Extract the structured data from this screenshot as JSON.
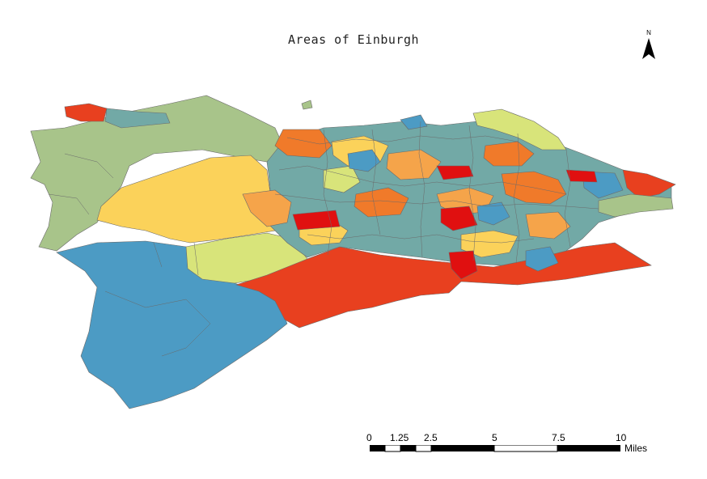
{
  "map": {
    "title": "Areas of Einburgh",
    "north_label": "N",
    "palette": [
      "#4c9bc4",
      "#72a9a6",
      "#a8c48a",
      "#d8e47a",
      "#fbd25a",
      "#f5a44a",
      "#f07a2a",
      "#e8401f",
      "#e01010"
    ],
    "outline_color": "#6a6a6a"
  },
  "scale_bar": {
    "ticks": [
      "0",
      "1.25",
      "2.5",
      "5",
      "7.5",
      "10"
    ],
    "units": "Miles"
  }
}
